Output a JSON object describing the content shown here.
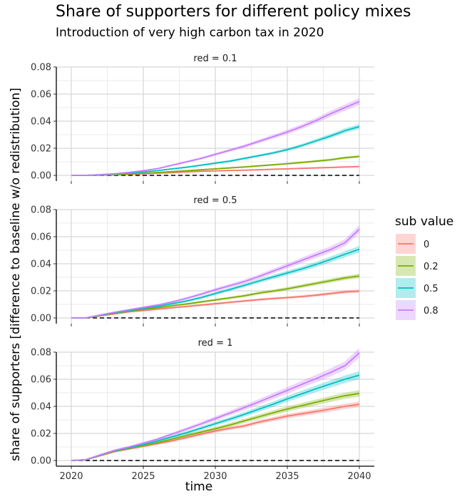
{
  "title": "Share of supporters for different policy mixes",
  "subtitle": "Introduction of very high carbon tax in 2020",
  "chart_data": {
    "type": "line",
    "xlabel": "time",
    "ylabel": "share of supporters [difference to baseline w/o redistribution]",
    "xlim": [
      2020,
      2040
    ],
    "ylim": [
      0,
      0.085
    ],
    "x_ticks": [
      2020,
      2025,
      2030,
      2035,
      2040
    ],
    "x_tick_labels": [
      "2020",
      "2025",
      "2030",
      "2035",
      "2040"
    ],
    "y_ticks": [
      0,
      0.02,
      0.04,
      0.06,
      0.08
    ],
    "y_tick_labels": [
      "0.00",
      "0.02",
      "0.04",
      "0.06",
      "0.08"
    ],
    "grid": true,
    "baseline": 0,
    "legend": {
      "title": "sub value",
      "placement": "right",
      "entries": [
        {
          "label": "0",
          "color": "#f8766d"
        },
        {
          "label": "0.2",
          "color": "#7cae00"
        },
        {
          "label": "0.5",
          "color": "#00bfc4"
        },
        {
          "label": "0.8",
          "color": "#c77cff"
        }
      ]
    },
    "x": [
      2020,
      2021,
      2022,
      2023,
      2024,
      2025,
      2026,
      2027,
      2028,
      2029,
      2030,
      2031,
      2032,
      2033,
      2034,
      2035,
      2036,
      2037,
      2038,
      2039,
      2040
    ],
    "panels": [
      {
        "label": "red = 0.1",
        "series": [
          {
            "name": "0",
            "color": "#f8766d",
            "values": [
              0,
              0,
              0.0002,
              0.0005,
              0.0008,
              0.0012,
              0.0016,
              0.002,
              0.0025,
              0.003,
              0.0033,
              0.0036,
              0.0038,
              0.0041,
              0.0045,
              0.0048,
              0.0052,
              0.0055,
              0.0058,
              0.0062,
              0.0065
            ]
          },
          {
            "name": "0.2",
            "color": "#7cae00",
            "values": [
              0,
              0,
              0.0003,
              0.0006,
              0.001,
              0.0015,
              0.0021,
              0.0028,
              0.0034,
              0.0041,
              0.0048,
              0.0055,
              0.0062,
              0.007,
              0.0078,
              0.0086,
              0.0095,
              0.0105,
              0.0115,
              0.013,
              0.014
            ]
          },
          {
            "name": "0.5",
            "color": "#00bfc4",
            "values": [
              0,
              0,
              0.0004,
              0.001,
              0.0018,
              0.0025,
              0.0035,
              0.0048,
              0.006,
              0.0075,
              0.009,
              0.0105,
              0.0125,
              0.0145,
              0.0165,
              0.019,
              0.022,
              0.0255,
              0.029,
              0.033,
              0.036
            ]
          },
          {
            "name": "0.8",
            "color": "#c77cff",
            "values": [
              0,
              0,
              0.0006,
              0.0012,
              0.0022,
              0.0035,
              0.005,
              0.0075,
              0.01,
              0.0125,
              0.0155,
              0.0185,
              0.0215,
              0.025,
              0.0285,
              0.032,
              0.036,
              0.0405,
              0.0455,
              0.05,
              0.0545
            ]
          }
        ]
      },
      {
        "label": "red = 0.5",
        "series": [
          {
            "name": "0",
            "color": "#f8766d",
            "values": [
              0,
              0,
              0.0015,
              0.003,
              0.0045,
              0.0055,
              0.0065,
              0.0075,
              0.0085,
              0.0095,
              0.0105,
              0.0115,
              0.0125,
              0.0135,
              0.0143,
              0.015,
              0.0158,
              0.0168,
              0.018,
              0.0192,
              0.0198
            ]
          },
          {
            "name": "0.2",
            "color": "#7cae00",
            "values": [
              0,
              0,
              0.0018,
              0.0035,
              0.005,
              0.0063,
              0.0075,
              0.009,
              0.0103,
              0.0118,
              0.0133,
              0.0148,
              0.0163,
              0.0183,
              0.0198,
              0.0215,
              0.0235,
              0.0255,
              0.0275,
              0.0295,
              0.031
            ]
          },
          {
            "name": "0.5",
            "color": "#00bfc4",
            "values": [
              0,
              0,
              0.002,
              0.0038,
              0.0055,
              0.007,
              0.0085,
              0.0105,
              0.0125,
              0.015,
              0.018,
              0.021,
              0.024,
              0.0272,
              0.0302,
              0.0332,
              0.0362,
              0.0395,
              0.0432,
              0.047,
              0.0507
            ]
          },
          {
            "name": "0.8",
            "color": "#c77cff",
            "values": [
              0,
              0,
              0.0022,
              0.0042,
              0.006,
              0.0078,
              0.0095,
              0.0118,
              0.0145,
              0.0175,
              0.0208,
              0.0238,
              0.0268,
              0.0305,
              0.0345,
              0.0385,
              0.0425,
              0.0465,
              0.0505,
              0.0555,
              0.0655
            ]
          }
        ]
      },
      {
        "label": "red = 1",
        "series": [
          {
            "name": "0",
            "color": "#f8766d",
            "values": [
              0,
              0.0005,
              0.0035,
              0.0065,
              0.0085,
              0.0105,
              0.0125,
              0.0145,
              0.017,
              0.0195,
              0.0218,
              0.0238,
              0.0255,
              0.0283,
              0.0305,
              0.0328,
              0.0345,
              0.0362,
              0.038,
              0.04,
              0.0415
            ]
          },
          {
            "name": "0.2",
            "color": "#7cae00",
            "values": [
              0,
              0.0005,
              0.0038,
              0.0068,
              0.009,
              0.011,
              0.0132,
              0.0158,
              0.0185,
              0.021,
              0.0235,
              0.0262,
              0.0292,
              0.0322,
              0.0352,
              0.038,
              0.0405,
              0.043,
              0.0455,
              0.0478,
              0.0495
            ]
          },
          {
            "name": "0.5",
            "color": "#00bfc4",
            "values": [
              0,
              0.0006,
              0.004,
              0.0072,
              0.0095,
              0.0118,
              0.0145,
              0.0175,
              0.0205,
              0.0238,
              0.0272,
              0.0305,
              0.034,
              0.0378,
              0.0415,
              0.0455,
              0.0492,
              0.053,
              0.0565,
              0.06,
              0.063
            ]
          },
          {
            "name": "0.8",
            "color": "#c77cff",
            "values": [
              0,
              0.0006,
              0.0042,
              0.0075,
              0.01,
              0.0128,
              0.0158,
              0.0195,
              0.0232,
              0.027,
              0.031,
              0.035,
              0.039,
              0.0432,
              0.0475,
              0.0518,
              0.0562,
              0.0605,
              0.065,
              0.07,
              0.0795
            ]
          }
        ]
      }
    ]
  }
}
